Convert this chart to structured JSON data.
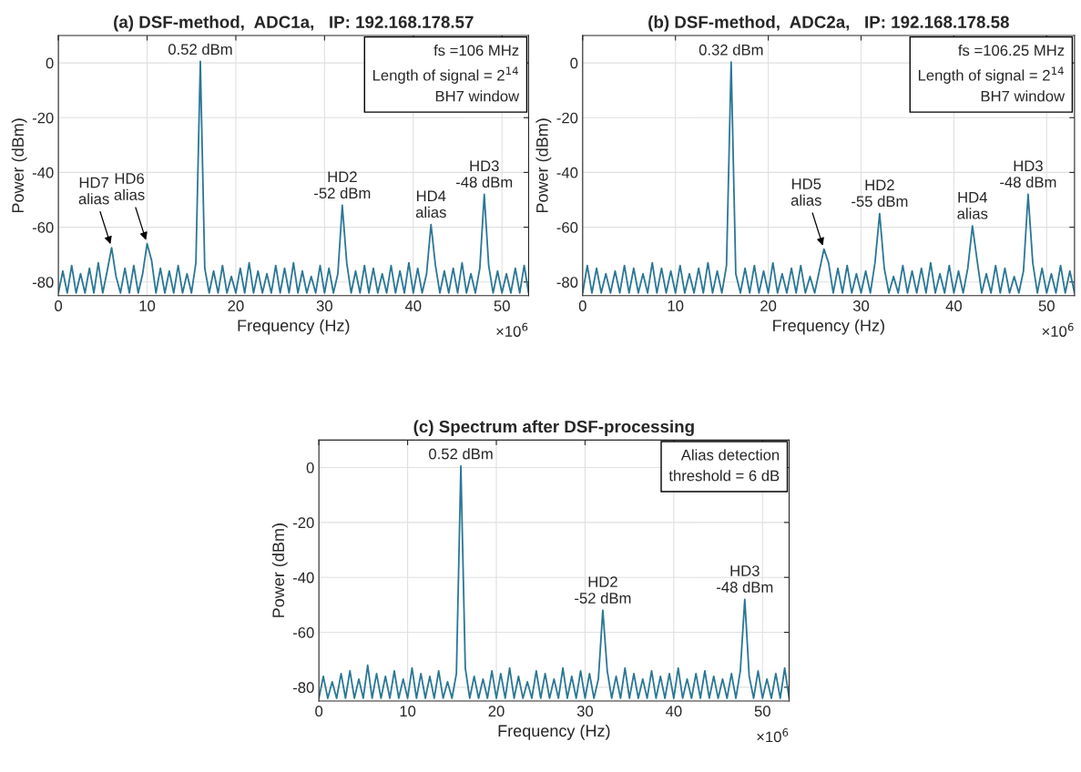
{
  "chart_data": [
    {
      "type": "line",
      "title": "(a) DSF-method,  ADC1a,   IP: 192.168.178.57",
      "xlabel": "Frequency (Hz)",
      "ylabel": "Power (dBm)",
      "grid": true,
      "x": [
        0,
        0.5,
        1,
        1.5,
        2,
        2.5,
        3,
        3.5,
        4,
        4.5,
        5,
        5.5,
        6,
        6.5,
        7,
        7.5,
        8,
        8.5,
        9,
        9.5,
        10,
        10.5,
        11,
        11.5,
        12,
        12.5,
        13,
        13.5,
        14,
        14.5,
        15,
        15.5,
        16,
        16.5,
        17,
        17.5,
        18,
        18.5,
        19,
        19.5,
        20,
        20.5,
        21,
        21.5,
        22,
        22.5,
        23,
        23.5,
        24,
        24.5,
        25,
        25.5,
        26,
        26.5,
        27,
        27.5,
        28,
        28.5,
        29,
        29.5,
        30,
        30.5,
        31,
        31.5,
        32,
        32.5,
        33,
        33.5,
        34,
        34.5,
        35,
        35.5,
        36,
        36.5,
        37,
        37.5,
        38,
        38.5,
        39,
        39.5,
        40,
        40.5,
        41,
        41.5,
        42,
        42.5,
        43,
        43.5,
        44,
        44.5,
        45,
        45.5,
        46,
        46.5,
        47,
        47.5,
        48,
        48.5,
        49,
        49.5,
        50,
        50.5,
        51,
        51.5,
        52,
        52.5,
        53
      ],
      "series": [
        {
          "color": "#2a7795",
          "values": [
            -84,
            -76,
            -84,
            -74,
            -84,
            -77,
            -84,
            -75,
            -84,
            -73,
            -84,
            -76,
            -67.5,
            -78,
            -84,
            -75,
            -84,
            -74,
            -84,
            -77,
            -66,
            -72,
            -84,
            -75,
            -84,
            -76,
            -84,
            -74,
            -84,
            -77,
            -84,
            -73,
            0.52,
            -75,
            -84,
            -76,
            -84,
            -74,
            -84,
            -78,
            -84,
            -75,
            -84,
            -73,
            -84,
            -76,
            -84,
            -77,
            -84,
            -74,
            -84,
            -75,
            -84,
            -73,
            -84,
            -76,
            -84,
            -78,
            -84,
            -74,
            -84,
            -75,
            -84,
            -77,
            -52,
            -73,
            -84,
            -76,
            -84,
            -74,
            -84,
            -75,
            -84,
            -77,
            -84,
            -74,
            -84,
            -76,
            -84,
            -73,
            -84,
            -75,
            -84,
            -77,
            -59,
            -74,
            -84,
            -76,
            -84,
            -75,
            -84,
            -73,
            -84,
            -77,
            -84,
            -75,
            -48,
            -74,
            -84,
            -76,
            -84,
            -77,
            -84,
            -75,
            -84,
            -74,
            -84
          ]
        }
      ],
      "xlim": [
        0,
        53
      ],
      "ylim": [
        -85,
        10
      ],
      "xticks": [
        0,
        10,
        20,
        30,
        40,
        50
      ],
      "yticks": [
        -80,
        -60,
        -40,
        -20,
        0
      ],
      "annotations": [
        "fs =106 MHz\nLength of signal = 2$^{14}$\nBH7 window",
        "×10$^{6}$",
        {
          "text": "0.52 dBm",
          "x": 16,
          "y": 0.52
        },
        {
          "text": "HD2\n-52 dBm",
          "x": 32,
          "y": -52
        },
        {
          "text": "HD3\n-48 dBm",
          "x": 48,
          "y": -48
        },
        {
          "text": "HD4\nalias",
          "x": 42,
          "y": -59
        },
        {
          "text": "HD7\nalias",
          "x": 6,
          "y": -67.5
        },
        {
          "text": "HD6\nalias",
          "x": 10,
          "y": -66
        }
      ]
    },
    {
      "type": "line",
      "title": "(b) DSF-method,  ADC2a,   IP: 192.168.178.58",
      "xlabel": "Frequency (Hz)",
      "ylabel": "Power (dBm)",
      "grid": true,
      "x": [
        0,
        0.5,
        1,
        1.5,
        2,
        2.5,
        3,
        3.5,
        4,
        4.5,
        5,
        5.5,
        6,
        6.5,
        7,
        7.5,
        8,
        8.5,
        9,
        9.5,
        10,
        10.5,
        11,
        11.5,
        12,
        12.5,
        13,
        13.5,
        14,
        14.5,
        15,
        15.5,
        16,
        16.5,
        17,
        17.5,
        18,
        18.5,
        19,
        19.5,
        20,
        20.5,
        21,
        21.5,
        22,
        22.5,
        23,
        23.5,
        24,
        24.5,
        25,
        25.5,
        26,
        26.5,
        27,
        27.5,
        28,
        28.5,
        29,
        29.5,
        30,
        30.5,
        31,
        31.5,
        32,
        32.5,
        33,
        33.5,
        34,
        34.5,
        35,
        35.5,
        36,
        36.5,
        37,
        37.5,
        38,
        38.5,
        39,
        39.5,
        40,
        40.5,
        41,
        41.5,
        42,
        42.5,
        43,
        43.5,
        44,
        44.5,
        45,
        45.5,
        46,
        46.5,
        47,
        47.5,
        48,
        48.5,
        49,
        49.5,
        50,
        50.5,
        51,
        51.5,
        52,
        52.5,
        53
      ],
      "series": [
        {
          "color": "#2a7795",
          "values": [
            -84,
            -74,
            -84,
            -75,
            -84,
            -77,
            -84,
            -76,
            -84,
            -74,
            -84,
            -75,
            -84,
            -77,
            -84,
            -73,
            -84,
            -75,
            -84,
            -76,
            -84,
            -74,
            -84,
            -77,
            -84,
            -75,
            -84,
            -73,
            -84,
            -76,
            -84,
            -74,
            0.32,
            -77,
            -84,
            -75,
            -84,
            -74,
            -84,
            -76,
            -84,
            -73,
            -84,
            -77,
            -84,
            -75,
            -84,
            -74,
            -84,
            -78,
            -84,
            -76,
            -68,
            -73,
            -84,
            -75,
            -84,
            -74,
            -84,
            -77,
            -84,
            -76,
            -84,
            -73,
            -55,
            -75,
            -84,
            -78,
            -84,
            -74,
            -84,
            -76,
            -84,
            -75,
            -84,
            -73,
            -84,
            -77,
            -84,
            -74,
            -84,
            -76,
            -84,
            -75,
            -59.5,
            -72,
            -84,
            -77,
            -84,
            -74,
            -84,
            -75,
            -84,
            -78,
            -84,
            -76,
            -48,
            -73,
            -84,
            -75,
            -84,
            -77,
            -84,
            -74,
            -84,
            -76,
            -84
          ]
        }
      ],
      "xlim": [
        0,
        53
      ],
      "ylim": [
        -85,
        10
      ],
      "xticks": [
        0,
        10,
        20,
        30,
        40,
        50
      ],
      "yticks": [
        -80,
        -60,
        -40,
        -20,
        0
      ],
      "annotations": [
        "fs =106.25 MHz\nLength of signal = 2$^{14}$\nBH7 window",
        "×10$^{6}$",
        {
          "text": "0.32 dBm",
          "x": 16,
          "y": 0.32
        },
        {
          "text": "HD2\n-55 dBm",
          "x": 32,
          "y": -55
        },
        {
          "text": "HD3\n-48 dBm",
          "x": 48,
          "y": -48
        },
        {
          "text": "HD4\nalias",
          "x": 42,
          "y": -59.5
        },
        {
          "text": "HD5\nalias",
          "x": 26,
          "y": -68
        }
      ]
    },
    {
      "type": "line",
      "title": "(c) Spectrum after DSF-processing",
      "xlabel": "Frequency (Hz)",
      "ylabel": "Power (dBm)",
      "grid": true,
      "x": [
        0,
        0.5,
        1,
        1.5,
        2,
        2.5,
        3,
        3.5,
        4,
        4.5,
        5,
        5.5,
        6,
        6.5,
        7,
        7.5,
        8,
        8.5,
        9,
        9.5,
        10,
        10.5,
        11,
        11.5,
        12,
        12.5,
        13,
        13.5,
        14,
        14.5,
        15,
        15.5,
        16,
        16.5,
        17,
        17.5,
        18,
        18.5,
        19,
        19.5,
        20,
        20.5,
        21,
        21.5,
        22,
        22.5,
        23,
        23.5,
        24,
        24.5,
        25,
        25.5,
        26,
        26.5,
        27,
        27.5,
        28,
        28.5,
        29,
        29.5,
        30,
        30.5,
        31,
        31.5,
        32,
        32.5,
        33,
        33.5,
        34,
        34.5,
        35,
        35.5,
        36,
        36.5,
        37,
        37.5,
        38,
        38.5,
        39,
        39.5,
        40,
        40.5,
        41,
        41.5,
        42,
        42.5,
        43,
        43.5,
        44,
        44.5,
        45,
        45.5,
        46,
        46.5,
        47,
        47.5,
        48,
        48.5,
        49,
        49.5,
        50,
        50.5,
        51,
        51.5,
        52,
        52.5,
        53
      ],
      "series": [
        {
          "color": "#2a7795",
          "values": [
            -84,
            -76,
            -84,
            -78,
            -84,
            -75,
            -84,
            -74,
            -84,
            -77,
            -84,
            -72,
            -84,
            -75,
            -84,
            -76,
            -84,
            -74,
            -84,
            -77,
            -84,
            -73,
            -84,
            -75,
            -84,
            -76,
            -84,
            -74,
            -84,
            -78,
            -84,
            -75,
            0.52,
            -73,
            -84,
            -76,
            -84,
            -77,
            -84,
            -74,
            -84,
            -75,
            -84,
            -73,
            -84,
            -76,
            -84,
            -78,
            -84,
            -74,
            -84,
            -75,
            -84,
            -77,
            -84,
            -73,
            -84,
            -76,
            -84,
            -74,
            -84,
            -75,
            -84,
            -77,
            -52,
            -74,
            -84,
            -76,
            -84,
            -73,
            -84,
            -75,
            -84,
            -77,
            -84,
            -74,
            -84,
            -76,
            -84,
            -75,
            -84,
            -73,
            -84,
            -77,
            -84,
            -75,
            -84,
            -74,
            -84,
            -76,
            -84,
            -77,
            -84,
            -75,
            -84,
            -74,
            -48,
            -76,
            -84,
            -74,
            -84,
            -77,
            -84,
            -75,
            -84,
            -73,
            -84
          ]
        }
      ],
      "xlim": [
        0,
        53
      ],
      "ylim": [
        -85,
        10
      ],
      "xticks": [
        0,
        10,
        20,
        30,
        40,
        50
      ],
      "yticks": [
        -80,
        -60,
        -40,
        -20,
        0
      ],
      "annotations": [
        "Alias detection\nthreshold = 6 dB",
        "×10$^{6}$",
        {
          "text": "0.52 dBm",
          "x": 16,
          "y": 0.52
        },
        {
          "text": "HD2\n-52 dBm",
          "x": 32,
          "y": -52
        },
        {
          "text": "HD3\n-48 dBm",
          "x": 48,
          "y": -48
        }
      ]
    }
  ]
}
